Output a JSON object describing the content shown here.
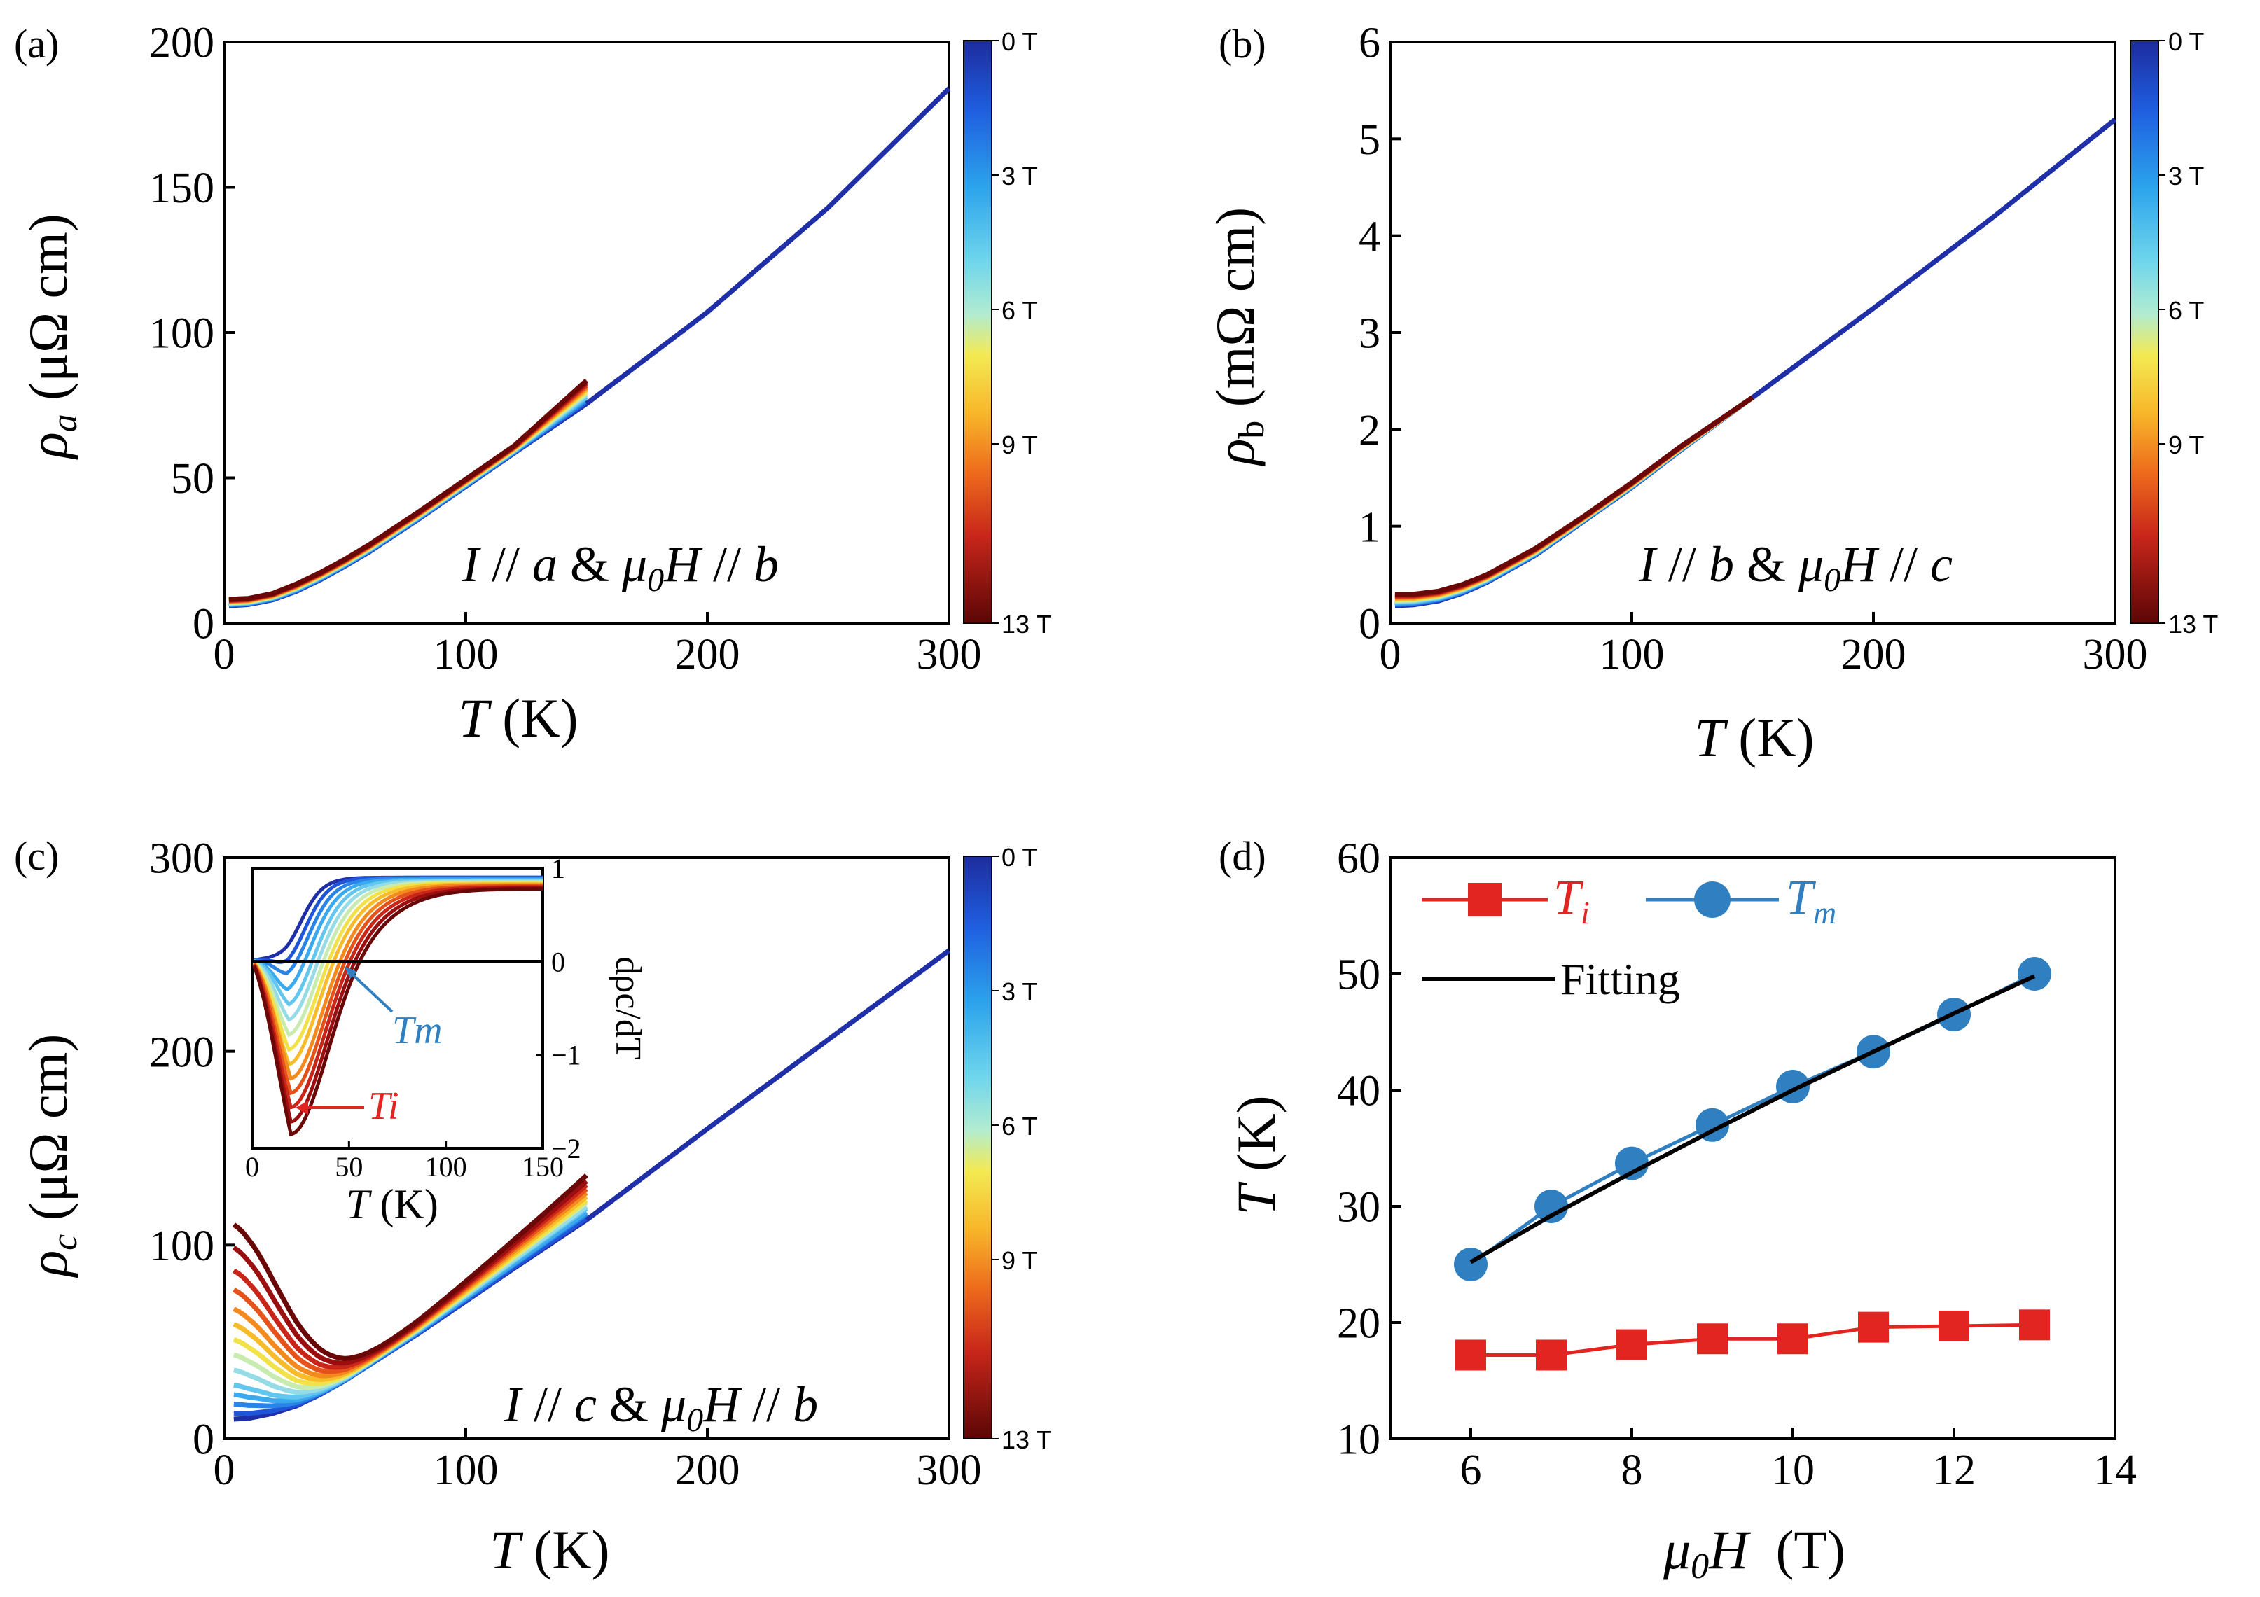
{
  "colors": {
    "field_stops": [
      "#00004d",
      "#1e3adb",
      "#2f86ea",
      "#4ab7e9",
      "#7fd6e8",
      "#b8e7a6",
      "#f1e24a",
      "#f9b824",
      "#f47d1c",
      "#e0401c",
      "#b31414",
      "#8a0e0e",
      "#650808"
    ],
    "ti": "#e32522",
    "tm": "#2f7fc1",
    "fit": "#000000",
    "axis": "#000000"
  },
  "chart_data": [
    {
      "panel": "(a)",
      "type": "line",
      "title": "",
      "xlabel_italic": "T",
      "xlabel_rest": " (K)",
      "ylabel_symbol": "ρ",
      "ylabel_sub": "a",
      "ylabel_rest": " (μΩ cm)",
      "xlim": [
        0,
        300
      ],
      "ylim": [
        0,
        200
      ],
      "xticks": [
        "0",
        "100",
        "200",
        "300"
      ],
      "yticks": [
        "0",
        "50",
        "100",
        "150",
        "200"
      ],
      "annotation": "I // a & μ0H // b",
      "colorbar_ticks": [
        "0 T",
        "3 T",
        "6 T",
        "9 T",
        "13 T"
      ],
      "fields_T": [
        0,
        1,
        2,
        3,
        4,
        5,
        6,
        7,
        8,
        9,
        10,
        11,
        12,
        13
      ],
      "base_curve_0T": {
        "x": [
          2,
          10,
          20,
          30,
          40,
          50,
          60,
          80,
          100,
          120,
          150,
          200,
          250,
          300
        ],
        "y": [
          6.0,
          6.4,
          8.0,
          11.0,
          15.0,
          19.6,
          24.5,
          35.5,
          47.0,
          58.5,
          75.5,
          107.0,
          143.0,
          184.0
        ]
      },
      "field_curves_high_T": {
        "x": [
          2,
          10,
          20,
          30,
          40,
          50,
          60,
          80,
          100,
          120,
          150
        ],
        "y": [
          8.2,
          8.5,
          10.2,
          13.5,
          17.5,
          22.0,
          27.0,
          38.0,
          49.5,
          61.0,
          83.5
        ]
      }
    },
    {
      "panel": "(b)",
      "type": "line",
      "title": "",
      "xlabel_italic": "T",
      "xlabel_rest": " (K)",
      "ylabel_symbol": "ρ",
      "ylabel_sub": "b",
      "ylabel_rest": " (mΩ cm)",
      "xlim": [
        0,
        300
      ],
      "ylim": [
        0,
        6
      ],
      "xticks": [
        "0",
        "100",
        "200",
        "300"
      ],
      "yticks": [
        "0",
        "1",
        "2",
        "3",
        "4",
        "5",
        "6"
      ],
      "annotation": "I // b & μ0H // c",
      "colorbar_ticks": [
        "0 T",
        "3 T",
        "6 T",
        "9 T",
        "13 T"
      ],
      "fields_T": [
        0,
        1,
        2,
        3,
        4,
        5,
        6,
        7,
        8,
        9,
        10,
        11,
        12,
        13
      ],
      "base_curve_0T": {
        "x": [
          2,
          10,
          20,
          30,
          40,
          60,
          80,
          100,
          120,
          150,
          200,
          250,
          300
        ],
        "y": [
          0.18,
          0.19,
          0.23,
          0.31,
          0.42,
          0.7,
          1.05,
          1.4,
          1.78,
          2.33,
          3.25,
          4.2,
          5.2
        ]
      },
      "field_curves_high_T": {
        "x": [
          2,
          10,
          20,
          30,
          40,
          60,
          80,
          100,
          120,
          150
        ],
        "y": [
          0.3,
          0.3,
          0.33,
          0.4,
          0.5,
          0.77,
          1.1,
          1.45,
          1.82,
          2.33
        ]
      }
    },
    {
      "panel": "(c)",
      "type": "line",
      "title": "",
      "xlabel_italic": "T",
      "xlabel_rest": " (K)",
      "ylabel_symbol": "ρ",
      "ylabel_sub": "c",
      "ylabel_rest": " (μΩ cm)",
      "xlim": [
        0,
        300
      ],
      "ylim": [
        0,
        300
      ],
      "xticks": [
        "0",
        "100",
        "200",
        "300"
      ],
      "yticks": [
        "0",
        "100",
        "200",
        "300"
      ],
      "annotation": "I // c & μ0H // b",
      "colorbar_ticks": [
        "0 T",
        "3 T",
        "6 T",
        "9 T",
        "13 T"
      ],
      "fields_T": [
        0,
        1,
        2,
        3,
        4,
        5,
        6,
        7,
        8,
        9,
        10,
        11,
        12,
        13
      ],
      "base_curve_0T": {
        "x": [
          2,
          10,
          20,
          30,
          40,
          50,
          60,
          80,
          100,
          120,
          150,
          200,
          250,
          300
        ],
        "y": [
          10,
          10.5,
          13,
          17,
          23,
          30,
          38,
          54,
          71,
          88,
          113,
          160,
          206,
          252
        ]
      },
      "low_T_plateau_by_field": [
        10,
        13,
        18,
        23,
        28,
        36,
        44,
        52,
        60,
        68,
        78,
        88,
        100,
        112
      ],
      "value_at_150K_by_field": [
        113,
        114,
        116,
        117,
        119,
        120,
        122,
        123,
        125,
        127,
        129,
        131,
        133,
        136
      ],
      "inset": {
        "xlabel_italic": "T",
        "xlabel_rest": " (K)",
        "ylabel": "dρc/dT",
        "xlim": [
          0,
          150
        ],
        "ylim": [
          -2,
          1
        ],
        "xticks": [
          "0",
          "50",
          "100",
          "150"
        ],
        "yticks": [
          "1",
          "0",
          "−1",
          "−2"
        ],
        "annotation_tm": "Tm",
        "annotation_ti": "Ti",
        "min_value_by_field": [
          -0.05,
          -0.15,
          -0.25,
          -0.4,
          -0.55,
          -0.7,
          -0.85,
          -1.0,
          -1.15,
          -1.3,
          -1.45,
          -1.6,
          -1.75,
          -1.88
        ],
        "min_position_K_by_field": [
          18,
          18,
          18,
          18,
          19,
          19,
          19,
          19,
          19,
          20,
          20,
          20,
          20,
          20
        ],
        "high_T_plateau_by_field": [
          0.9,
          0.9,
          0.89,
          0.88,
          0.87,
          0.86,
          0.85,
          0.84,
          0.83,
          0.82,
          0.81,
          0.8,
          0.79,
          0.78
        ],
        "zero_crossing_K_by_field": [
          25,
          28,
          31,
          34,
          37,
          40,
          43,
          46,
          49,
          52,
          55,
          58,
          61,
          64
        ]
      },
      "colorbar_labels_note": ""
    },
    {
      "panel": "(d)",
      "type": "line",
      "title": "",
      "xlabel_italic": "μ0H",
      "xlabel_rest": "  (T)",
      "ylabel_italic": "T",
      "ylabel_rest": " (K)",
      "xlim": [
        5,
        14
      ],
      "ylim": [
        10,
        60
      ],
      "xticks": [
        "6",
        "8",
        "10",
        "12",
        "14"
      ],
      "yticks": [
        "10",
        "20",
        "30",
        "40",
        "50",
        "60"
      ],
      "series": [
        {
          "name": "Ti",
          "marker": "square",
          "x": [
            6,
            7,
            8,
            9,
            10,
            11,
            12,
            13
          ],
          "y": [
            17.2,
            17.2,
            18.1,
            18.6,
            18.6,
            19.6,
            19.7,
            19.8
          ]
        },
        {
          "name": "Tm",
          "marker": "circle",
          "x": [
            6,
            7,
            8,
            9,
            10,
            11,
            12,
            13
          ],
          "y": [
            25.0,
            30.0,
            33.7,
            37.0,
            40.3,
            43.3,
            46.5,
            50.0
          ]
        },
        {
          "name": "Fitting",
          "marker": "none",
          "x": [
            6,
            7,
            8,
            9,
            10,
            11,
            12,
            13
          ],
          "y": [
            25.2,
            29.2,
            32.9,
            36.5,
            40.0,
            43.3,
            46.6,
            49.8
          ]
        }
      ],
      "legend": [
        {
          "symbol": "T",
          "sub": "i"
        },
        {
          "symbol": "T",
          "sub": "m"
        },
        {
          "label": "Fitting"
        }
      ]
    }
  ]
}
